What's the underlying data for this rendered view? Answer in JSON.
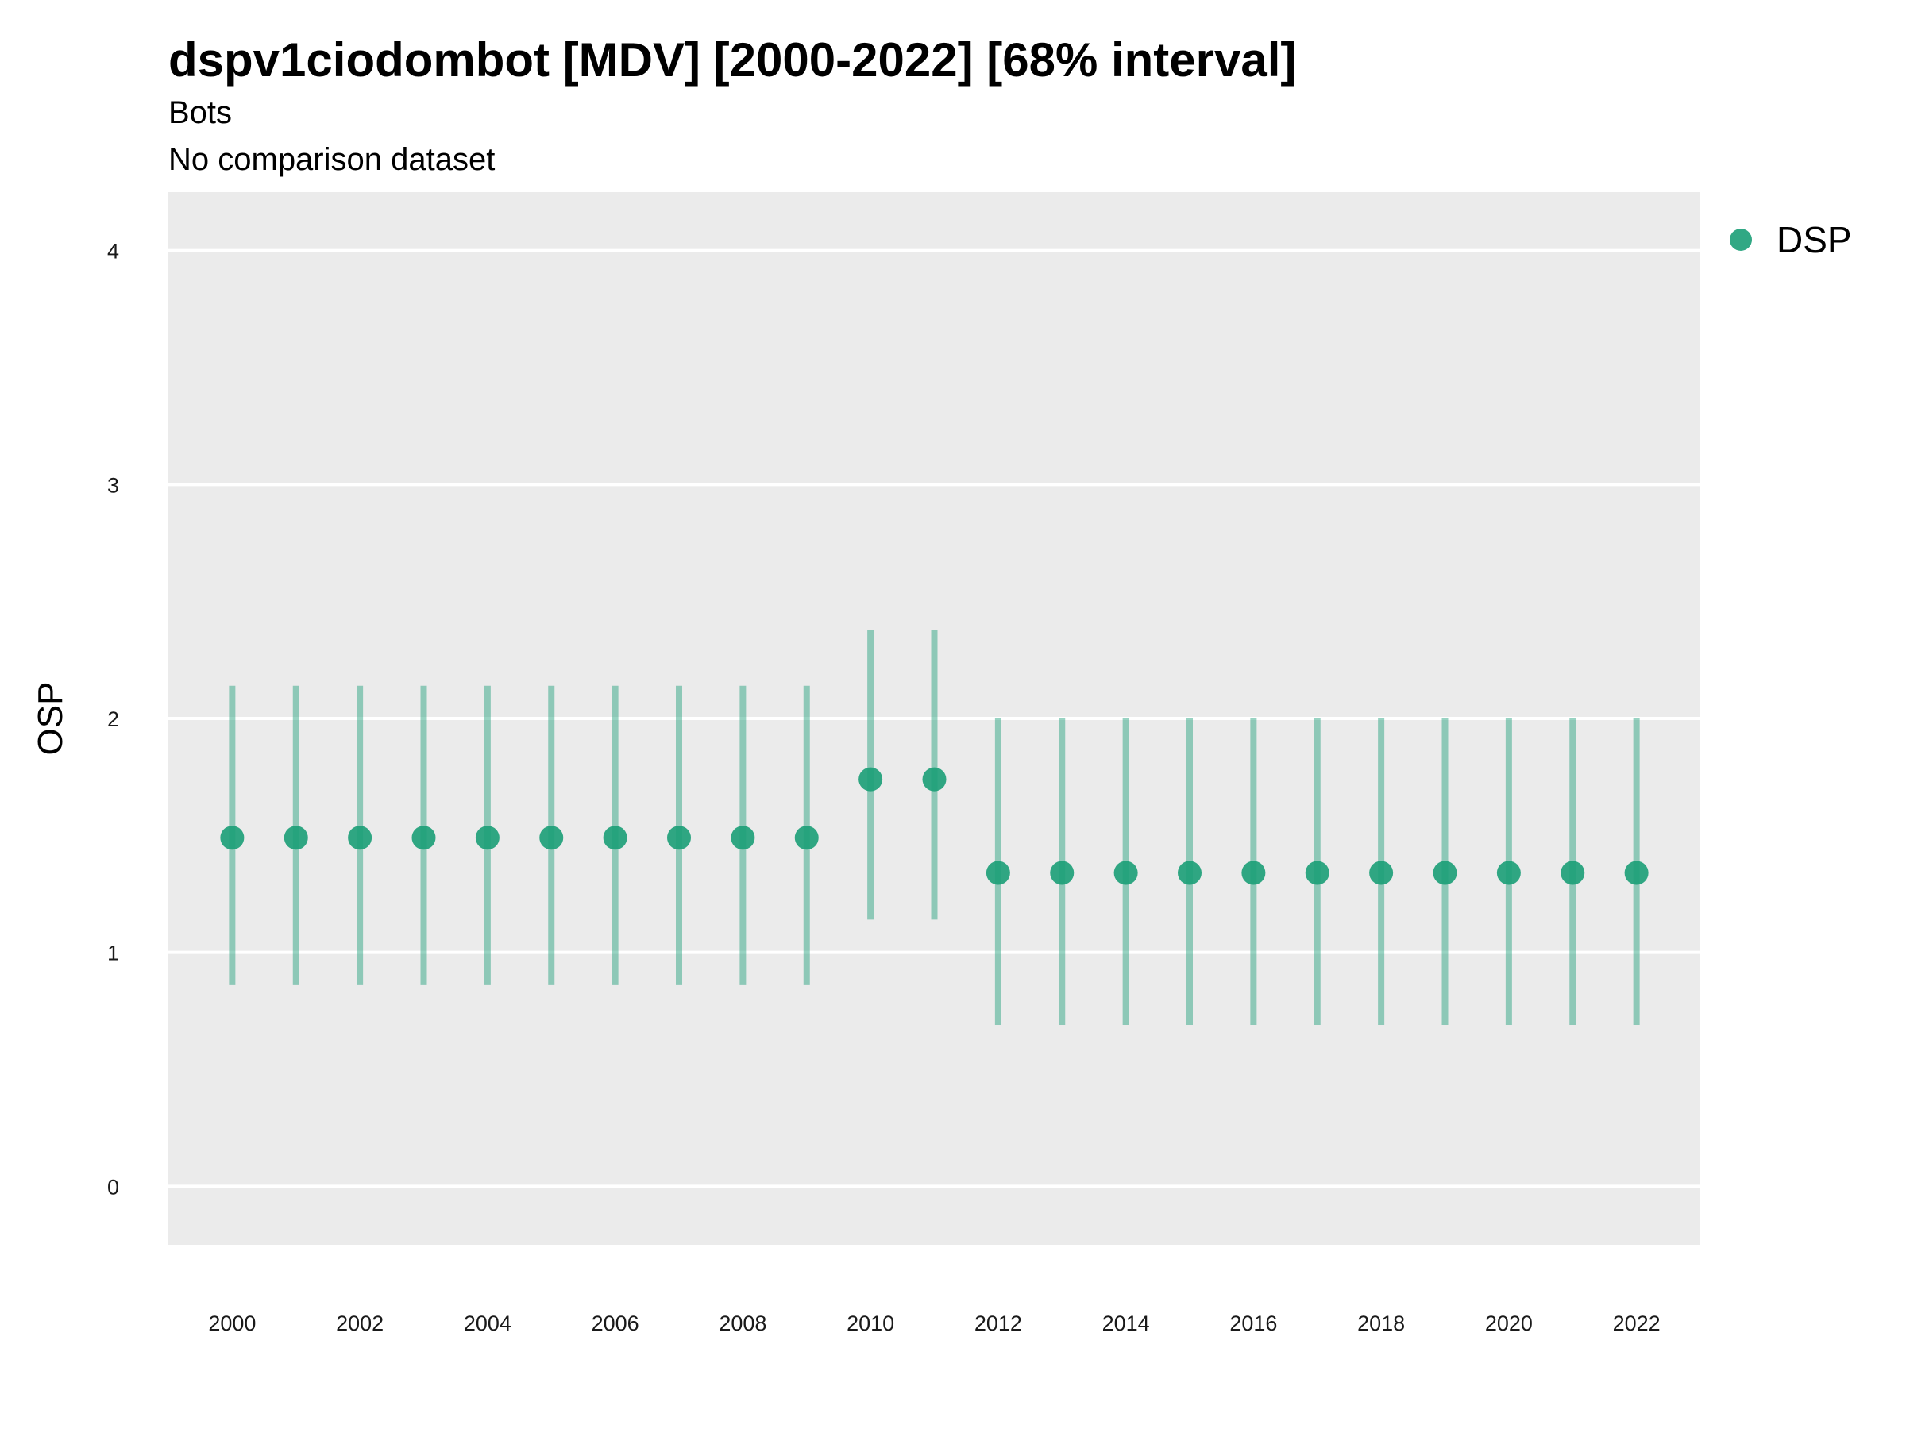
{
  "chart_data": {
    "type": "scatter",
    "title": "dspv1ciodombot [MDV] [2000-2022] [68% interval]",
    "subtitle_lines": [
      "Bots",
      "No comparison dataset"
    ],
    "xlabel": "",
    "ylabel": "OSP",
    "ylim": [
      -0.25,
      4.25
    ],
    "y_ticks": [
      "0",
      "1",
      "2",
      "3",
      "4"
    ],
    "x_ticks": [
      "2000",
      "2002",
      "2004",
      "2006",
      "2008",
      "2010",
      "2012",
      "2014",
      "2016",
      "2018",
      "2020",
      "2022"
    ],
    "grid": true,
    "legend_position": "right",
    "x": [
      2000,
      2001,
      2002,
      2003,
      2004,
      2005,
      2006,
      2007,
      2008,
      2009,
      2010,
      2011,
      2012,
      2013,
      2014,
      2015,
      2016,
      2017,
      2018,
      2019,
      2020,
      2021,
      2022
    ],
    "series": [
      {
        "name": "DSP",
        "color": "#1B9E77",
        "values": [
          1.49,
          1.49,
          1.49,
          1.49,
          1.49,
          1.49,
          1.49,
          1.49,
          1.49,
          1.49,
          1.74,
          1.74,
          1.34,
          1.34,
          1.34,
          1.34,
          1.34,
          1.34,
          1.34,
          1.34,
          1.34,
          1.34,
          1.34
        ],
        "lower": [
          0.86,
          0.86,
          0.86,
          0.86,
          0.86,
          0.86,
          0.86,
          0.86,
          0.86,
          0.86,
          1.14,
          1.14,
          0.69,
          0.69,
          0.69,
          0.69,
          0.69,
          0.69,
          0.69,
          0.69,
          0.69,
          0.69,
          0.69
        ],
        "upper": [
          2.14,
          2.14,
          2.14,
          2.14,
          2.14,
          2.14,
          2.14,
          2.14,
          2.14,
          2.14,
          2.38,
          2.38,
          2.0,
          2.0,
          2.0,
          2.0,
          2.0,
          2.0,
          2.0,
          2.0,
          2.0,
          2.0,
          2.0
        ]
      }
    ]
  },
  "colors": {
    "panel_background": "#EBEBEB",
    "grid": "#FFFFFF",
    "point": "#1B9E77"
  }
}
